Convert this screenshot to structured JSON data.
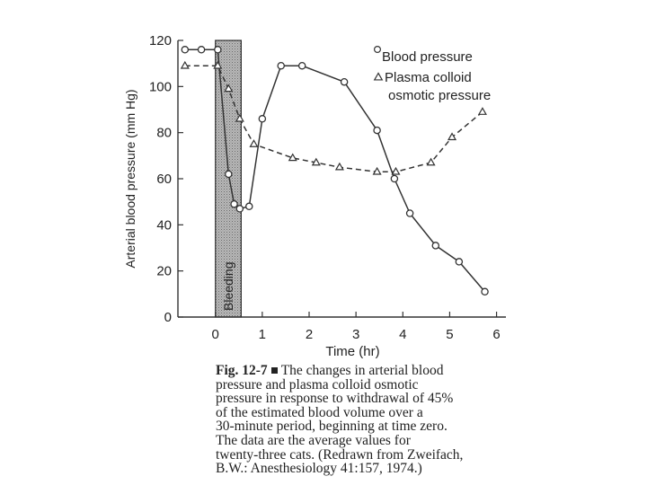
{
  "chart_data": {
    "type": "line",
    "title": "",
    "xlabel": "Time (hr)",
    "ylabel": "Arterial blood pressure (mm Hg)",
    "xlim": [
      -0.8,
      6.2
    ],
    "ylim": [
      0,
      120
    ],
    "xticks": [
      0,
      1,
      2,
      3,
      4,
      5,
      6
    ],
    "yticks": [
      0,
      20,
      40,
      60,
      80,
      100,
      120
    ],
    "shaded_region": {
      "x_start": 0,
      "x_end": 0.55,
      "label": "Bleeding"
    },
    "legend": {
      "position": "top-right",
      "entries": [
        {
          "marker": "o",
          "lines": [
            "Blood pressure"
          ]
        },
        {
          "marker": "Δ",
          "lines": [
            "Plasma colloid",
            "osmotic pressure"
          ]
        }
      ]
    },
    "series": [
      {
        "name": "Blood pressure",
        "marker": "circle",
        "style": "solid",
        "x": [
          -0.65,
          -0.3,
          0.05,
          0.28,
          0.4,
          0.52,
          0.72,
          1.0,
          1.4,
          1.85,
          2.75,
          3.45,
          3.82,
          4.15,
          4.7,
          5.2,
          5.75
        ],
        "y": [
          116,
          116,
          116,
          62,
          49,
          47,
          48,
          86,
          109,
          109,
          102,
          81,
          60,
          45,
          31,
          24,
          11
        ]
      },
      {
        "name": "Plasma colloid osmotic pressure",
        "marker": "triangle",
        "style": "dashed",
        "x": [
          -0.65,
          0.05,
          0.28,
          0.52,
          0.82,
          1.65,
          2.15,
          2.65,
          3.45,
          3.85,
          4.6,
          5.05,
          5.7
        ],
        "y": [
          109,
          109,
          99,
          86,
          75,
          69,
          67,
          65,
          63,
          63,
          67,
          78,
          89
        ]
      }
    ]
  },
  "caption": {
    "fig_label": "Fig. 12-7",
    "lines": [
      "The changes in arterial blood",
      "pressure and plasma colloid osmotic",
      "pressure in response to withdrawal of 45%",
      "of the estimated blood volume over a",
      "30-minute period, beginning at time zero.",
      "The data are the average values for",
      "twenty-three cats. (Redrawn from Zweifach,",
      "B.W.: Anesthesiology 41:157, 1974.)"
    ]
  }
}
